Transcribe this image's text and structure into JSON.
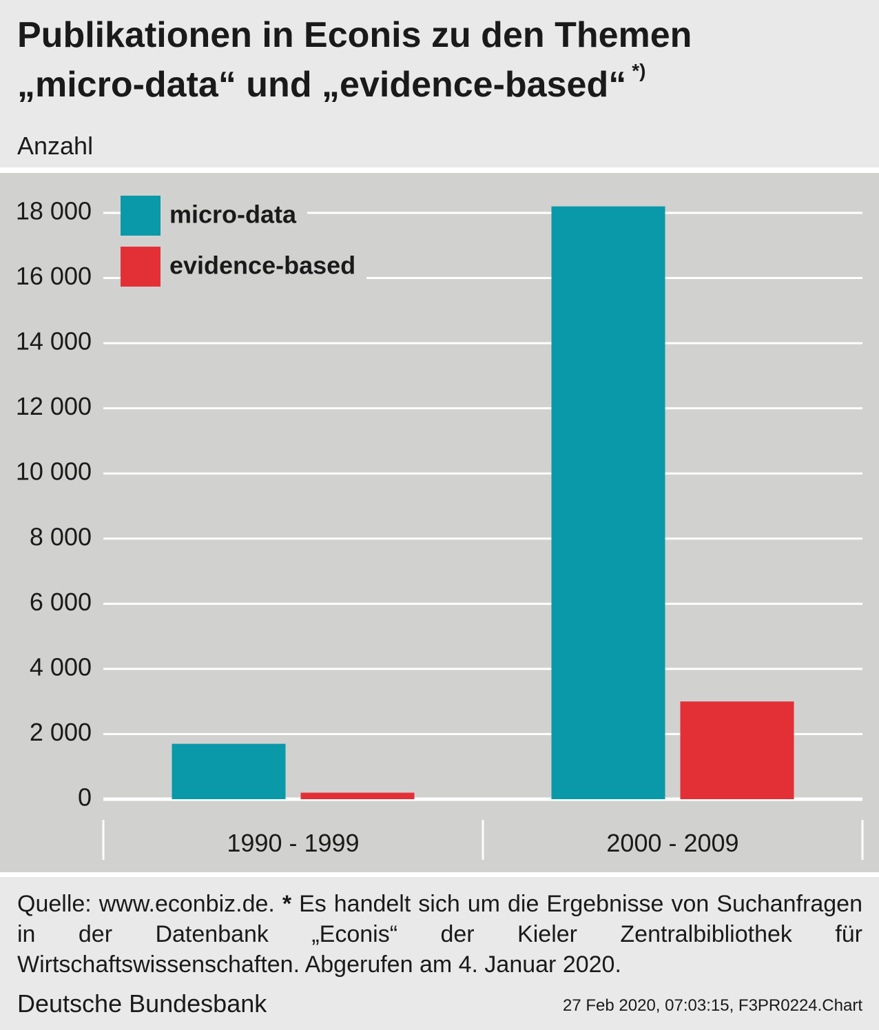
{
  "chart_data": {
    "type": "bar",
    "title": [
      "Publikationen in Econis zu den Themen",
      "„micro-data“ und „evidence-based“"
    ],
    "title_note": "*)",
    "subtitle": "Anzahl",
    "categories": [
      "1990 - 1999",
      "2000 - 2009"
    ],
    "series": [
      {
        "name": "micro-data",
        "color": "#0a99a8",
        "values": [
          1700,
          18200
        ]
      },
      {
        "name": "evidence-based",
        "color": "#e33036",
        "values": [
          200,
          3000
        ]
      }
    ],
    "ylim": [
      0,
      18000
    ],
    "yticks": [
      0,
      {
        "value": 2000,
        "label": "2 000"
      },
      {
        "value": 4000,
        "label": "4 000"
      },
      {
        "value": 6000,
        "label": "6 000"
      },
      {
        "value": 8000,
        "label": "8 000"
      },
      {
        "value": 10000,
        "label": "10 000"
      },
      {
        "value": 12000,
        "label": "12 000"
      },
      {
        "value": 14000,
        "label": "14 000"
      },
      {
        "value": 16000,
        "label": "16 000"
      },
      {
        "value": 18000,
        "label": "18 000"
      }
    ],
    "grid": true,
    "legend": "top-left",
    "source": "Quelle: www.econbiz.de.",
    "footnote_marker": "*",
    "footnote": "Es handelt sich um die Ergebnisse von Suchanfragen in der Datenbank „Econis“ der Kieler Zentralbibliothek für Wirtschaftswissenschaften. Abgerufen am 4. Januar 2020.",
    "credit": "Deutsche Bundesbank",
    "timestamp": "27 Feb 2020, 07:03:15, F3PR0224.Chart"
  }
}
